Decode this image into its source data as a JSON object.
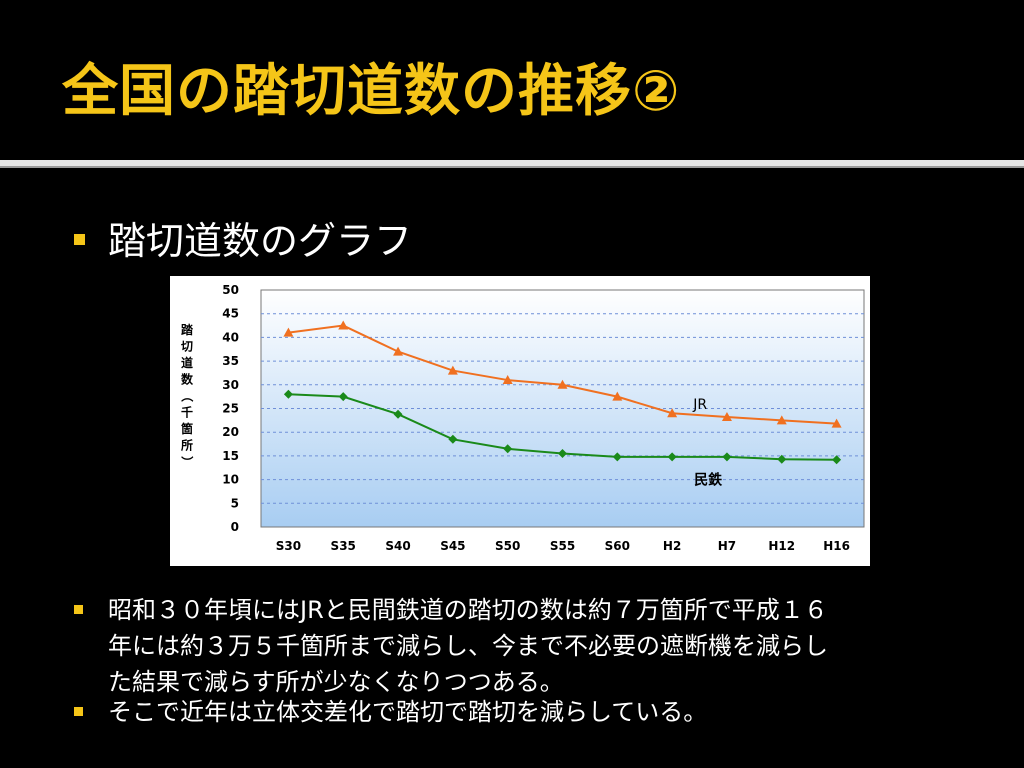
{
  "slide": {
    "title": "全国の踏切道数の推移②",
    "heading": "踏切道数のグラフ",
    "paragraph1_lines": [
      "昭和３０年頃にはJRと民間鉄道の踏切の数は約７万箇所で平成１６",
      "年には約３万５千箇所まで減らし、今まで不必要の遮断機を減らし",
      "た結果で減らす所が少なくなりつつある。"
    ],
    "paragraph2": "そこで近年は立体交差化で踏切で踏切を減らしている。",
    "accent_color": "#f5c518"
  },
  "chart_data": {
    "type": "line",
    "categories": [
      "S30",
      "S35",
      "S40",
      "S45",
      "S50",
      "S55",
      "S60",
      "H2",
      "H7",
      "H12",
      "H16"
    ],
    "ylabel": "踏切道数（千箇所）",
    "ylim": [
      0,
      50
    ],
    "yticks": [
      0,
      5,
      10,
      15,
      20,
      25,
      30,
      35,
      40,
      45,
      50
    ],
    "grid": true,
    "series": [
      {
        "name": "JR",
        "color": "#f07020",
        "marker": "triangle",
        "values": [
          41.0,
          42.5,
          37.0,
          33.0,
          31.0,
          30.0,
          27.5,
          24.0,
          23.2,
          22.5,
          21.8
        ]
      },
      {
        "name": "民鉄",
        "color": "#1a8a1a",
        "marker": "diamond",
        "values": [
          28.0,
          27.5,
          23.8,
          18.5,
          16.5,
          15.5,
          14.8,
          14.8,
          14.8,
          14.3,
          14.2
        ]
      }
    ]
  }
}
